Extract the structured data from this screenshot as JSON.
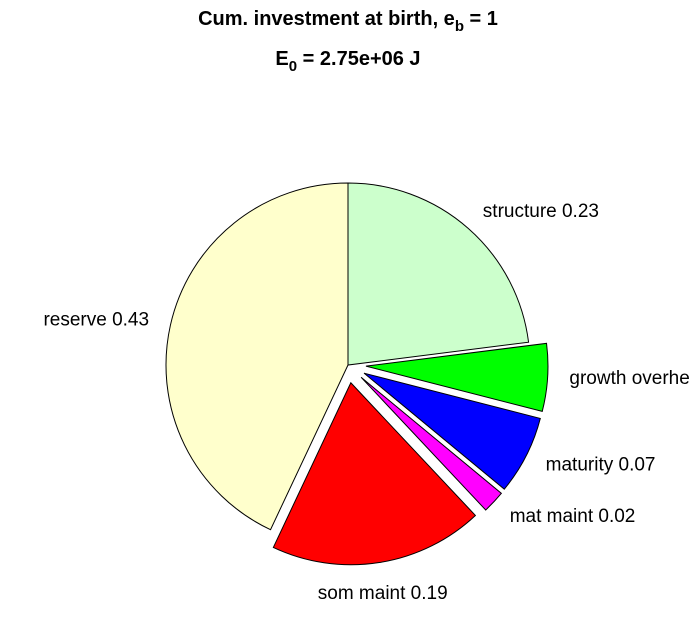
{
  "chart_data": {
    "type": "pie",
    "title": [
      "Cum. investment at birth, e",
      "b",
      " = 1"
    ],
    "subtitle": [
      "E",
      "0",
      " = 2.75e+06 J"
    ],
    "categories": [
      "structure 0.23",
      "growth overhe",
      "maturity 0.07",
      "mat maint 0.02",
      "som maint 0.19",
      "reserve 0.43"
    ],
    "values": [
      0.23,
      0.06,
      0.07,
      0.02,
      0.19,
      0.43
    ],
    "colors": [
      "#ccffcc",
      "#00ff00",
      "#0000ff",
      "#ff00ff",
      "#ff0000",
      "#ffffcc"
    ],
    "explode": [
      false,
      true,
      true,
      true,
      true,
      false
    ]
  }
}
